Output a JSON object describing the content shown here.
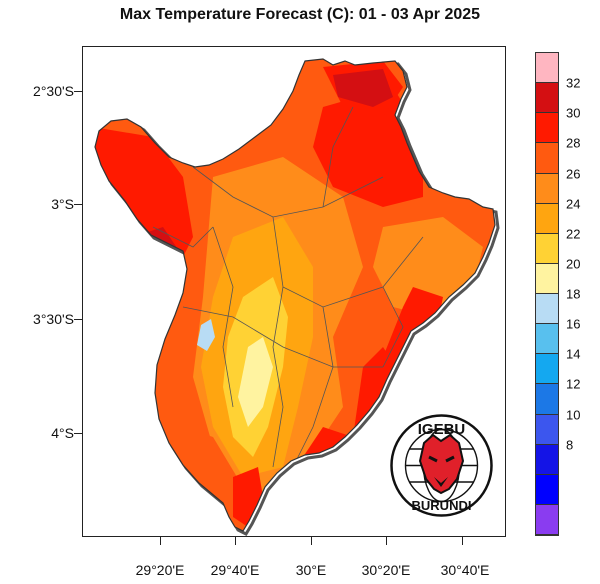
{
  "title": "Max Temperature Forecast (C): 01 - 03 Apr 2025",
  "lat_labels": [
    "2°30'S",
    "3°S",
    "3°30'S",
    "4°S"
  ],
  "lon_labels": [
    "29°20'E",
    "29°40'E",
    "30°E",
    "30°20'E",
    "30°40'E"
  ],
  "legend": {
    "labels": [
      "32",
      "30",
      "28",
      "26",
      "24",
      "22",
      "20",
      "18",
      "16",
      "14",
      "12",
      "10",
      "8"
    ],
    "colors": [
      "#ffb6c1",
      "#d40f12",
      "#ff1a00",
      "#ff5a10",
      "#ff8c1a",
      "#ffa510",
      "#ffd234",
      "#fff3a0",
      "#b8dcf4",
      "#58c0ee",
      "#14a8f0",
      "#1c78e6",
      "#3c56ee",
      "#1414e6",
      "#0000ff",
      "#8a3cf0"
    ]
  },
  "logo": {
    "top_text": "IGEBU",
    "bottom_text": "BURUNDI"
  }
}
